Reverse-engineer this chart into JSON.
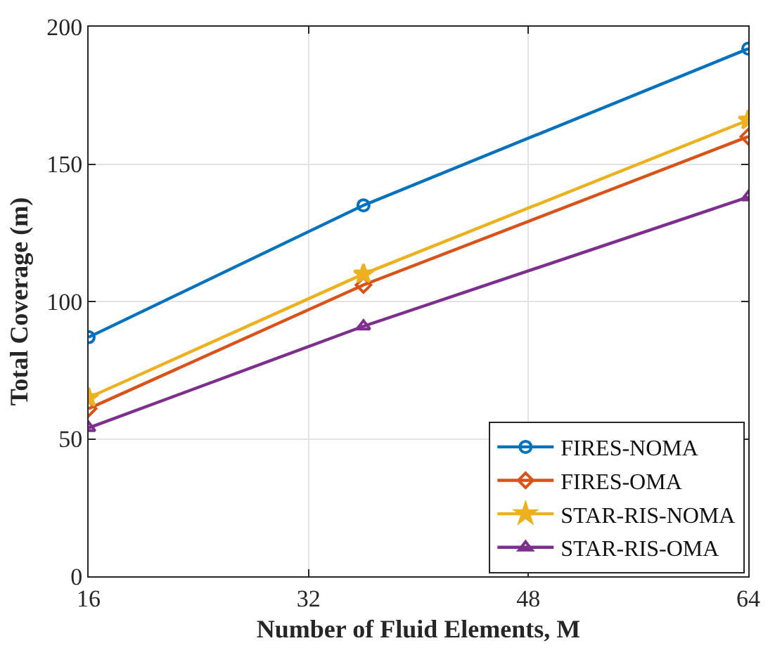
{
  "chart_data": {
    "type": "line",
    "xlabel": "Number of Fluid Elements, M",
    "ylabel": "Total Coverage (m)",
    "x": [
      16,
      36,
      64
    ],
    "xlim": [
      16,
      64
    ],
    "xticks": [
      16,
      32,
      48,
      64
    ],
    "ylim": [
      0,
      200
    ],
    "yticks": [
      0,
      50,
      100,
      150,
      200
    ],
    "grid": true,
    "legend": "bottom right",
    "line_style": "solid",
    "series": [
      {
        "name": "FIRES-NOMA",
        "color": "#0072bd",
        "marker": "circle",
        "values": [
          87,
          135,
          192
        ]
      },
      {
        "name": "FIRES-OMA",
        "color": "#d95319",
        "marker": "diamond",
        "values": [
          61,
          106,
          160
        ]
      },
      {
        "name": "STAR-RIS-NOMA",
        "color": "#edb120",
        "marker": "star",
        "values": [
          65,
          110,
          166
        ]
      },
      {
        "name": "STAR-RIS-OMA",
        "color": "#7e2f8e",
        "marker": "triangle",
        "values": [
          54,
          91,
          138
        ]
      }
    ]
  }
}
